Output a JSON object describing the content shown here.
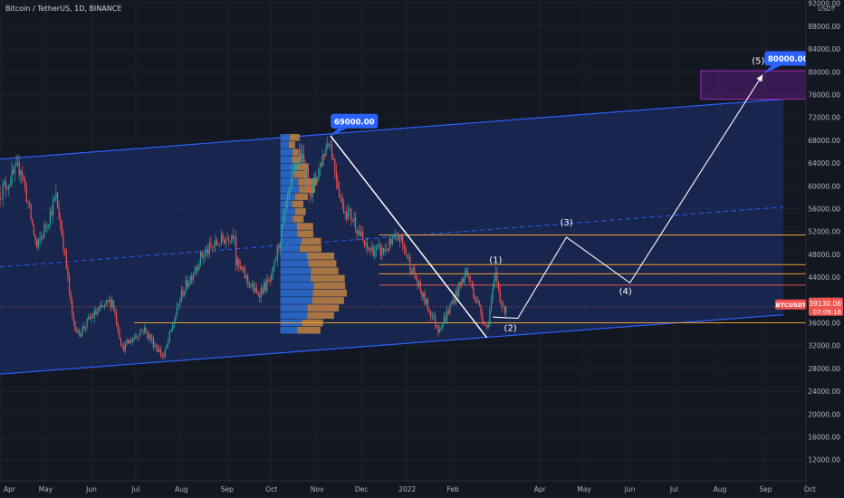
{
  "header": {
    "symbol_title": "Bitcoin / TetherUS, 1D, BINANCE",
    "currency": "USDT"
  },
  "colors": {
    "background": "#131722",
    "up_candle": "#26a69a",
    "down_candle": "#ef5350",
    "channel_line": "#2962ff",
    "channel_fill": "#1e3a8a",
    "projection_path": "#ffffff",
    "horizontal_level_orange": "#f0a030",
    "horizontal_level_red": "#ef5350",
    "volume_profile_up": "#2d6fd1",
    "volume_profile_down": "#c08442",
    "target_zone": "#7b1fa2",
    "price_label_bg": "#2962ff",
    "last_price_bg": "#ef5350",
    "axis_text": "#b2b5be"
  },
  "chart_data": {
    "type": "candlestick",
    "title": "Bitcoin / TetherUS, 1D, BINANCE",
    "ylabel": "USDT",
    "ylim": [
      8000,
      92000
    ],
    "y_ticks": [
      12000,
      16000,
      20000,
      24000,
      28000,
      32000,
      36000,
      40000,
      44000,
      48000,
      52000,
      56000,
      60000,
      64000,
      68000,
      72000,
      76000,
      80000,
      84000,
      88000,
      92000
    ],
    "y_tick_labels": [
      "12000.00",
      "16000.00",
      "20000.00",
      "24000.00",
      "28000.00",
      "32000.00",
      "36000.00",
      "40000.00",
      "44000.00",
      "48000.00",
      "52000.00",
      "56000.00",
      "60000.00",
      "64000.00",
      "68000.00",
      "72000.00",
      "76000.00",
      "80000.00",
      "84000.00",
      "88000.00",
      "92000.00"
    ],
    "x_ticks": [
      "2021-04-01",
      "2021-05-01",
      "2021-06-01",
      "2021-07-01",
      "2021-08-01",
      "2021-09-01",
      "2021-10-01",
      "2021-11-01",
      "2021-12-01",
      "2022-01-01",
      "2022-02-01",
      "2022-04-01",
      "2022-05-01",
      "2022-06-01",
      "2022-07-01",
      "2022-08-01",
      "2022-09-01",
      "2022-10-01"
    ],
    "x_tick_labels": [
      "Apr",
      "May",
      "Jun",
      "Jul",
      "Aug",
      "Sep",
      "Oct",
      "Nov",
      "Dec",
      "2022",
      "Feb",
      "Apr",
      "May",
      "Jun",
      "Jul",
      "Aug",
      "Sep",
      "Oct"
    ],
    "price_path": [
      [
        "2021-03-31",
        58800
      ],
      [
        "2021-04-14",
        63500
      ],
      [
        "2021-04-25",
        49000
      ],
      [
        "2021-05-08",
        58000
      ],
      [
        "2021-05-13",
        50000
      ],
      [
        "2021-05-19",
        37000
      ],
      [
        "2021-05-23",
        34000
      ],
      [
        "2021-06-01",
        37000
      ],
      [
        "2021-06-15",
        40000
      ],
      [
        "2021-06-22",
        31500
      ],
      [
        "2021-07-06",
        35000
      ],
      [
        "2021-07-20",
        30000
      ],
      [
        "2021-08-01",
        41000
      ],
      [
        "2021-08-14",
        47500
      ],
      [
        "2021-08-23",
        49500
      ],
      [
        "2021-09-06",
        52000
      ],
      [
        "2021-09-07",
        46500
      ],
      [
        "2021-09-21",
        41000
      ],
      [
        "2021-10-01",
        43500
      ],
      [
        "2021-10-15",
        61000
      ],
      [
        "2021-10-20",
        66000
      ],
      [
        "2021-10-28",
        59000
      ],
      [
        "2021-11-09",
        68500
      ],
      [
        "2021-11-18",
        56500
      ],
      [
        "2021-11-26",
        54000
      ],
      [
        "2021-12-04",
        49000
      ],
      [
        "2021-12-15",
        48500
      ],
      [
        "2021-12-27",
        51000
      ],
      [
        "2022-01-10",
        41500
      ],
      [
        "2022-01-22",
        35000
      ],
      [
        "2022-01-27",
        37000
      ],
      [
        "2022-02-10",
        45000
      ],
      [
        "2022-02-24",
        35000
      ],
      [
        "2022-03-02",
        44500
      ],
      [
        "2022-03-07",
        38000
      ],
      [
        "2022-03-09",
        39130
      ]
    ],
    "channel": {
      "upper": [
        [
          "2021-03-31",
          64700
        ],
        [
          "2022-09-13",
          75200
        ]
      ],
      "lower": [
        [
          "2021-03-31",
          27000
        ],
        [
          "2022-09-13",
          37400
        ]
      ],
      "mid": [
        [
          "2021-03-31",
          45800
        ],
        [
          "2022-09-13",
          56300
        ]
      ]
    },
    "horizontal_levels": [
      {
        "price": 51400,
        "color": "orange"
      },
      {
        "price": 46200,
        "color": "orange"
      },
      {
        "price": 44600,
        "color": "orange"
      },
      {
        "price": 42600,
        "color": "red"
      },
      {
        "price": 38800,
        "color": "red-dotted"
      },
      {
        "price": 36000,
        "color": "orange"
      }
    ],
    "trendline": [
      [
        "2021-11-10",
        68800
      ],
      [
        "2022-02-24",
        33400
      ]
    ],
    "target_zone": {
      "x_start": "2022-07-19",
      "x_end": "2022-10-13",
      "y_low": 75200,
      "y_high": 80200
    },
    "elliott_wave": {
      "path": [
        [
          "2022-02-28",
          37000
        ],
        [
          "2022-03-17",
          36800
        ],
        [
          "2022-04-19",
          51000
        ],
        [
          "2022-06-01",
          43000
        ],
        [
          "2022-08-30",
          79500
        ]
      ],
      "labels": [
        {
          "text": "(1)",
          "x": "2022-03-02",
          "y": 46500
        },
        {
          "text": "(2)",
          "x": "2022-03-12",
          "y": 34600
        },
        {
          "text": "(3)",
          "x": "2022-04-19",
          "y": 53100
        },
        {
          "text": "(4)",
          "x": "2022-05-29",
          "y": 41000
        },
        {
          "text": "(5)",
          "x": "2022-08-27",
          "y": 81400
        }
      ]
    },
    "callouts": [
      {
        "text": "69000.00",
        "x": "2021-11-09",
        "y": 68500
      },
      {
        "text": "80000.00",
        "x": "2022-08-30",
        "y": 79500
      }
    ],
    "last_price": {
      "symbol": "BTCUSDT",
      "price": "39130.08",
      "countdown": "07:09:18",
      "value": 39130.08
    }
  }
}
